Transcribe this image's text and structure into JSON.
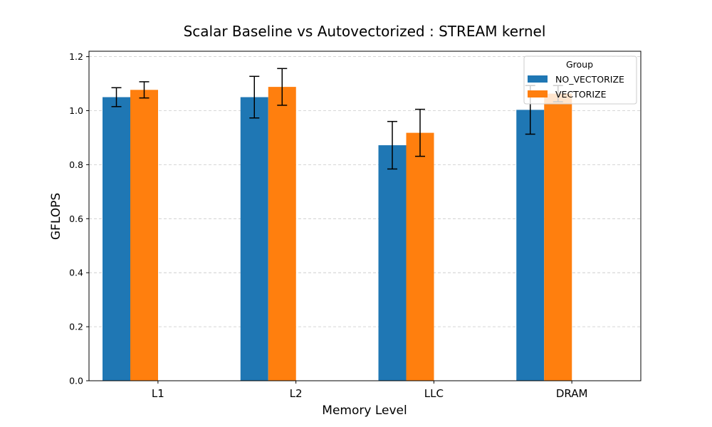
{
  "chart_data": {
    "type": "bar",
    "title": "Scalar Baseline vs Autovectorized : STREAM kernel",
    "xlabel": "Memory Level",
    "ylabel": "GFLOPS",
    "categories": [
      "L1",
      "L2",
      "LLC",
      "DRAM"
    ],
    "ylim": [
      0,
      1.22
    ],
    "yticks": [
      0.0,
      0.2,
      0.4,
      0.6,
      0.8,
      1.0,
      1.2
    ],
    "ytick_labels": [
      "0.0",
      "0.2",
      "0.4",
      "0.6",
      "0.8",
      "1.0",
      "1.2"
    ],
    "grid": "horizontal dashed",
    "legend": {
      "title": "Group",
      "placement": "top-right"
    },
    "series": [
      {
        "name": "NO_VECTORIZE",
        "color": "#1f77b4",
        "values": [
          1.05,
          1.05,
          0.872,
          1.003
        ],
        "errors": [
          0.035,
          0.077,
          0.088,
          0.09
        ]
      },
      {
        "name": "VECTORIZE",
        "color": "#ff7f0e",
        "values": [
          1.077,
          1.088,
          0.918,
          1.063
        ],
        "errors": [
          0.03,
          0.068,
          0.087,
          0.03
        ]
      }
    ]
  }
}
